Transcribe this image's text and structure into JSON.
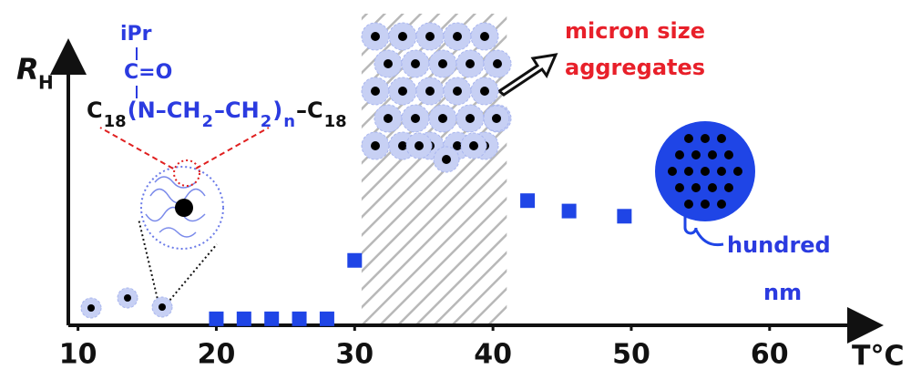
{
  "chart_data": {
    "type": "scatter",
    "x_label": "T°C",
    "y_label": "R",
    "y_label_sub": "H",
    "x": [
      20,
      22,
      24,
      26,
      28,
      30,
      42.5,
      45.5,
      49.5
    ],
    "values": [
      0.25,
      0.25,
      0.25,
      0.25,
      0.25,
      2.5,
      4.8,
      4.4,
      4.2
    ],
    "color": "#1f45e6",
    "xlim": [
      9.3,
      66.6
    ],
    "ylim": [
      0,
      10
    ],
    "xticks": [
      10,
      20,
      30,
      40,
      50,
      60
    ],
    "shaded_region": [
      30.5,
      41
    ],
    "annotations": {
      "micron": [
        "micron size",
        "aggregates"
      ],
      "hundred": [
        "hundred",
        "nm"
      ]
    },
    "formula": {
      "side": "iPr",
      "carbonyl": "C=O",
      "chain": [
        "C",
        "18",
        "(N–CH",
        "2",
        "–CH",
        "2",
        ")",
        "n",
        "–C",
        "18"
      ]
    }
  }
}
